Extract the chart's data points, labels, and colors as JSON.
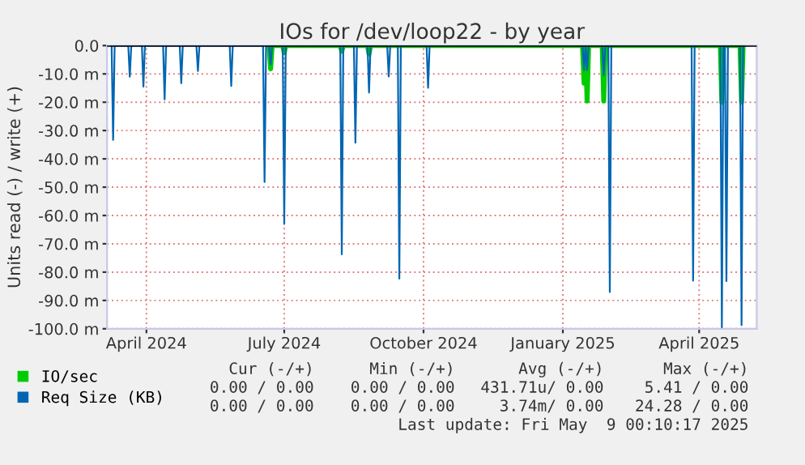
{
  "chart_data": {
    "type": "line",
    "title": "IOs for /dev/loop22 - by year",
    "ylabel": "Units read (-) / write (+)",
    "xlim": [
      "2024-03-06",
      "2025-05-09"
    ],
    "xticks": [
      {
        "value": "2024-04-01",
        "label": "April 2024"
      },
      {
        "value": "2024-07-01",
        "label": "July 2024"
      },
      {
        "value": "2024-10-01",
        "label": "October 2024"
      },
      {
        "value": "2025-01-01",
        "label": "January 2025"
      },
      {
        "value": "2025-04-01",
        "label": "April 2025"
      }
    ],
    "ylim": [
      -100,
      0
    ],
    "yticks": [
      {
        "value": 0,
        "label": "0.0"
      },
      {
        "value": -10,
        "label": "-10.0 m"
      },
      {
        "value": -20,
        "label": "-20.0 m"
      },
      {
        "value": -30,
        "label": "-30.0 m"
      },
      {
        "value": -40,
        "label": "-40.0 m"
      },
      {
        "value": -50,
        "label": "-50.0 m"
      },
      {
        "value": -60,
        "label": "-60.0 m"
      },
      {
        "value": -70,
        "label": "-70.0 m"
      },
      {
        "value": -80,
        "label": "-80.0 m"
      },
      {
        "value": -90,
        "label": "-90.0 m"
      },
      {
        "value": -100,
        "label": "-100.0 m"
      }
    ],
    "grid": true,
    "legend": "bottom",
    "line_style": "solid",
    "marker": "none",
    "ref_lines": [
      {
        "axis": "y",
        "value": 0,
        "color": "#000000"
      }
    ],
    "series": [
      {
        "name": "IO/sec",
        "color": "#00cc00",
        "x": [
          "2024-06-21",
          "2024-06-22",
          "2024-06-23",
          "2024-06-30",
          "2024-07-01",
          "2024-07-02",
          "2024-08-07",
          "2024-08-08",
          "2024-08-09",
          "2024-08-25",
          "2024-08-26",
          "2024-08-27",
          "2025-01-14",
          "2025-01-15",
          "2025-01-16",
          "2025-01-17",
          "2025-01-18",
          "2025-01-27",
          "2025-01-28",
          "2025-01-29",
          "2025-04-15",
          "2025-04-16",
          "2025-04-17",
          "2025-04-28",
          "2025-04-29",
          "2025-04-30"
        ],
        "values": [
          0,
          -8.2,
          0,
          0,
          -2.5,
          0,
          0,
          -2,
          0,
          0,
          -3,
          0,
          0,
          -13.3,
          0,
          -19.6,
          0,
          0,
          -19.6,
          0,
          0,
          -20,
          0,
          0,
          -20,
          0
        ]
      },
      {
        "name": "Req Size (KB)",
        "color": "#0066b3",
        "x": [
          "2024-03-09",
          "2024-03-10",
          "2024-03-11",
          "2024-03-20",
          "2024-03-21",
          "2024-03-22",
          "2024-03-29",
          "2024-03-30",
          "2024-03-31",
          "2024-04-12",
          "2024-04-13",
          "2024-04-14",
          "2024-04-23",
          "2024-04-24",
          "2024-04-25",
          "2024-05-04",
          "2024-05-05",
          "2024-05-06",
          "2024-05-26",
          "2024-05-27",
          "2024-05-28",
          "2024-06-17",
          "2024-06-18",
          "2024-06-19",
          "2024-06-21",
          "2024-06-22",
          "2024-06-23",
          "2024-06-30",
          "2024-07-01",
          "2024-07-02",
          "2024-08-07",
          "2024-08-08",
          "2024-08-09",
          "2024-08-16",
          "2024-08-17",
          "2024-08-18",
          "2024-08-25",
          "2024-08-26",
          "2024-08-27",
          "2024-09-07",
          "2024-09-08",
          "2024-09-09",
          "2024-09-14",
          "2024-09-15",
          "2024-09-16",
          "2024-10-03",
          "2024-10-04",
          "2024-10-05",
          "2025-01-14",
          "2025-01-15",
          "2025-01-16",
          "2025-01-17",
          "2025-01-18",
          "2025-01-27",
          "2025-01-28",
          "2025-01-29",
          "2025-01-31",
          "2025-02-01",
          "2025-02-02",
          "2025-03-27",
          "2025-03-28",
          "2025-03-29",
          "2025-04-15",
          "2025-04-16",
          "2025-04-17",
          "2025-04-18",
          "2025-04-19",
          "2025-04-20",
          "2025-04-28",
          "2025-04-29",
          "2025-04-30"
        ],
        "values": [
          0,
          -33.3,
          0,
          0,
          -11,
          0,
          0,
          -14.5,
          0,
          0,
          -19,
          0,
          0,
          -13.3,
          0,
          0,
          -9,
          0,
          0,
          -14.3,
          0,
          0,
          -48.2,
          0,
          0,
          -6.7,
          0,
          0,
          -62.9,
          0,
          0,
          -73.7,
          0,
          0,
          -34.3,
          0,
          0,
          -16.6,
          0,
          0,
          -10.9,
          0,
          0,
          -82.3,
          0,
          0,
          -14.9,
          0,
          0,
          -8.6,
          0,
          -8.6,
          0,
          0,
          -10.5,
          0,
          0,
          -87,
          0,
          0,
          -83,
          0,
          0,
          -99.5,
          0,
          0,
          -83.2,
          0,
          0,
          -98.7,
          0
        ]
      }
    ],
    "annotations": [
      "Cur (-/+)",
      "Min (-/+)",
      "Avg (-/+)",
      "Max (-/+)",
      "0.00 / 0.00",
      "0.00 / 0.00",
      "431.71u/ 0.00",
      "5.41 / 0.00",
      "0.00 / 0.00",
      "0.00 / 0.00",
      "3.74m/ 0.00",
      "24.28 / 0.00",
      "Last update: Fri May  9 00:10:17 2025"
    ]
  }
}
